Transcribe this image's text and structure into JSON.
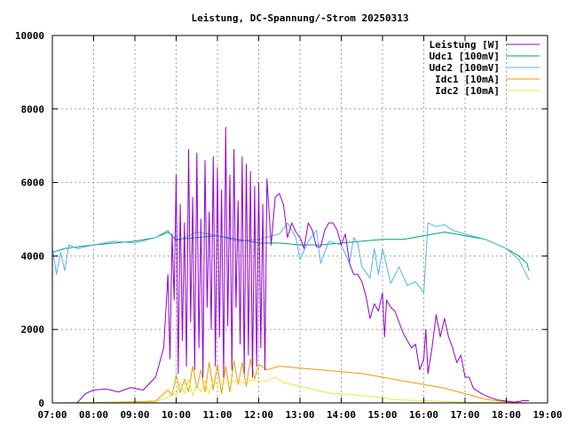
{
  "chart_data": {
    "type": "line",
    "title": "Leistung, DC-Spannung/-Strom 20250313",
    "xlabel": "",
    "ylabel": "",
    "xlim": [
      7.0,
      19.0
    ],
    "ylim": [
      0,
      10000
    ],
    "x_ticks": [
      "07:00",
      "08:00",
      "09:00",
      "10:00",
      "11:00",
      "12:00",
      "13:00",
      "14:00",
      "15:00",
      "16:00",
      "17:00",
      "18:00",
      "19:00"
    ],
    "y_ticks": [
      "0",
      "2000",
      "4000",
      "6000",
      "8000",
      "10000"
    ],
    "grid": true,
    "legend_position": "top-right",
    "series": [
      {
        "name": "Leistung [W]",
        "color": "#9400d3",
        "x": [
          7.6,
          7.8,
          8.0,
          8.3,
          8.6,
          8.9,
          9.2,
          9.5,
          9.7,
          9.8,
          9.85,
          9.9,
          9.95,
          10.0,
          10.05,
          10.1,
          10.15,
          10.2,
          10.25,
          10.3,
          10.35,
          10.4,
          10.45,
          10.5,
          10.55,
          10.6,
          10.65,
          10.7,
          10.75,
          10.8,
          10.85,
          10.9,
          10.95,
          11.0,
          11.05,
          11.1,
          11.15,
          11.2,
          11.25,
          11.3,
          11.35,
          11.4,
          11.45,
          11.5,
          11.55,
          11.6,
          11.65,
          11.7,
          11.75,
          11.8,
          11.85,
          11.9,
          11.95,
          12.0,
          12.05,
          12.1,
          12.15,
          12.2,
          12.3,
          12.4,
          12.5,
          12.6,
          12.7,
          12.8,
          12.9,
          13.0,
          13.1,
          13.2,
          13.3,
          13.4,
          13.5,
          13.6,
          13.7,
          13.8,
          13.9,
          14.0,
          14.1,
          14.2,
          14.3,
          14.4,
          14.5,
          14.6,
          14.7,
          14.8,
          14.9,
          15.0,
          15.05,
          15.1,
          15.2,
          15.3,
          15.4,
          15.5,
          15.6,
          15.7,
          15.8,
          15.9,
          16.0,
          16.05,
          16.1,
          16.2,
          16.3,
          16.4,
          16.5,
          16.6,
          16.7,
          16.8,
          16.9,
          17.0,
          17.1,
          17.2,
          17.4,
          17.6,
          17.8,
          18.0,
          18.2,
          18.4,
          18.55
        ],
        "values": [
          0,
          250,
          350,
          380,
          300,
          420,
          350,
          700,
          1500,
          3500,
          1200,
          4600,
          2800,
          6200,
          800,
          5400,
          1700,
          4900,
          1000,
          6900,
          2200,
          5600,
          900,
          6800,
          1500,
          5000,
          700,
          6600,
          2600,
          5200,
          2000,
          6700,
          1000,
          6400,
          1800,
          5800,
          700,
          7500,
          2100,
          6200,
          900,
          6900,
          2600,
          5500,
          1600,
          6700,
          800,
          6500,
          1300,
          6300,
          700,
          5900,
          1000,
          6000,
          1500,
          5400,
          900,
          6100,
          4300,
          5600,
          5700,
          5400,
          4500,
          4900,
          4650,
          4500,
          4200,
          4900,
          4700,
          4250,
          4250,
          4700,
          4900,
          4900,
          4700,
          4300,
          4600,
          3800,
          3500,
          3500,
          3300,
          2900,
          2300,
          2700,
          2500,
          3000,
          1800,
          2800,
          2600,
          2500,
          2200,
          1900,
          1700,
          1500,
          1600,
          900,
          1200,
          2000,
          800,
          1500,
          2400,
          1800,
          2300,
          1800,
          1500,
          1100,
          1300,
          700,
          700,
          400,
          250,
          150,
          80,
          50,
          20,
          60,
          60
        ]
      },
      {
        "name": "Udc1 [100mV]",
        "color": "#009e73",
        "x": [
          7.0,
          7.3,
          7.6,
          8.0,
          8.5,
          9.0,
          9.5,
          9.8,
          10.0,
          10.5,
          11.0,
          11.5,
          12.0,
          12.5,
          13.0,
          13.5,
          14.0,
          14.5,
          15.0,
          15.5,
          16.0,
          16.5,
          17.0,
          17.5,
          18.0,
          18.3,
          18.5,
          18.55
        ],
        "values": [
          4100,
          4200,
          4250,
          4300,
          4350,
          4400,
          4500,
          4650,
          4450,
          4500,
          4550,
          4450,
          4350,
          4350,
          4300,
          4300,
          4350,
          4400,
          4450,
          4450,
          4550,
          4650,
          4550,
          4450,
          4200,
          4000,
          3800,
          3600
        ]
      },
      {
        "name": "Udc2 [100mV]",
        "color": "#56b4e9",
        "x": [
          7.0,
          7.1,
          7.2,
          7.3,
          7.4,
          7.6,
          8.0,
          8.5,
          9.0,
          9.5,
          9.8,
          10.0,
          10.5,
          11.0,
          11.5,
          12.0,
          12.5,
          12.7,
          12.9,
          13.0,
          13.2,
          13.4,
          13.5,
          13.7,
          14.0,
          14.1,
          14.2,
          14.3,
          14.4,
          14.5,
          14.7,
          14.8,
          14.9,
          15.0,
          15.2,
          15.4,
          15.6,
          15.8,
          16.0,
          16.1,
          16.3,
          16.5,
          16.7,
          17.0,
          17.5,
          18.0,
          18.3,
          18.55
        ],
        "values": [
          4200,
          3500,
          4100,
          3600,
          4300,
          4200,
          4300,
          4400,
          4350,
          4500,
          4700,
          4400,
          4650,
          4550,
          4400,
          4450,
          4600,
          4900,
          4500,
          3900,
          4400,
          4700,
          3800,
          4400,
          4300,
          4050,
          3800,
          4500,
          4350,
          3700,
          3400,
          4200,
          3500,
          4200,
          3250,
          3700,
          3200,
          3300,
          3000,
          4900,
          4800,
          4850,
          4700,
          4600,
          4450,
          4200,
          3900,
          3350
        ]
      },
      {
        "name": "Idc1 [10mA]",
        "color": "#e69f00",
        "x": [
          7.0,
          8.0,
          8.5,
          9.0,
          9.5,
          9.7,
          9.8,
          9.9,
          10.0,
          10.1,
          10.2,
          10.3,
          10.4,
          10.5,
          10.6,
          10.7,
          10.8,
          10.9,
          11.0,
          11.1,
          11.2,
          11.3,
          11.4,
          11.5,
          11.6,
          11.7,
          11.8,
          11.9,
          12.0,
          12.2,
          12.5,
          13.0,
          13.5,
          14.0,
          14.5,
          15.0,
          15.5,
          16.0,
          16.5,
          17.0,
          17.5,
          18.0,
          18.5
        ],
        "values": [
          0,
          10,
          20,
          30,
          50,
          250,
          350,
          200,
          750,
          280,
          650,
          300,
          1000,
          400,
          900,
          300,
          1100,
          350,
          1050,
          250,
          1000,
          300,
          1150,
          500,
          1100,
          450,
          1200,
          650,
          1050,
          900,
          1000,
          950,
          900,
          850,
          800,
          700,
          600,
          500,
          400,
          250,
          100,
          30,
          0
        ]
      },
      {
        "name": "Idc2 [10mA]",
        "color": "#f0e442",
        "x": [
          7.0,
          8.0,
          9.0,
          9.5,
          9.8,
          9.9,
          10.0,
          10.1,
          10.2,
          10.3,
          10.4,
          10.5,
          10.6,
          10.7,
          10.8,
          10.9,
          11.0,
          11.2,
          11.4,
          11.6,
          11.8,
          12.0,
          12.2,
          12.4,
          12.6,
          12.8,
          13.0,
          13.2,
          13.4,
          13.6,
          13.8,
          14.0,
          14.5,
          15.0,
          15.2,
          15.5,
          16.0,
          16.5,
          17.0,
          17.5,
          18.0,
          18.5
        ],
        "values": [
          0,
          5,
          10,
          30,
          150,
          300,
          200,
          550,
          250,
          650,
          200,
          500,
          300,
          600,
          250,
          650,
          500,
          550,
          600,
          550,
          620,
          600,
          600,
          700,
          550,
          500,
          450,
          400,
          350,
          300,
          250,
          250,
          200,
          150,
          100,
          80,
          60,
          40,
          20,
          10,
          5,
          0
        ]
      }
    ]
  }
}
